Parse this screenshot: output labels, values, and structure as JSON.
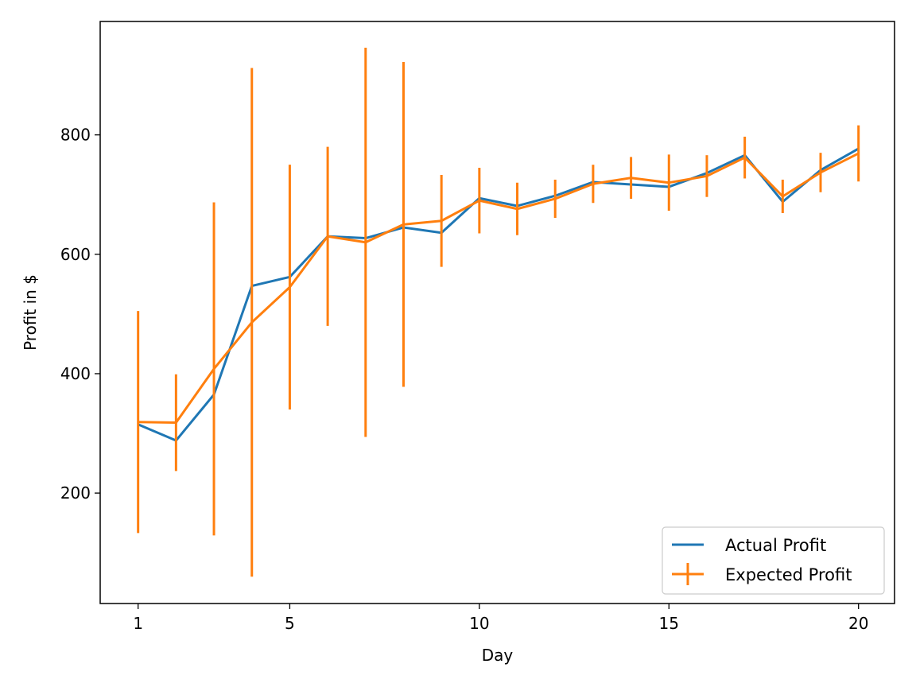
{
  "chart_data": {
    "type": "line",
    "title": "",
    "xlabel": "Day",
    "ylabel": "Profit in $",
    "x": [
      1,
      2,
      3,
      4,
      5,
      6,
      7,
      8,
      9,
      10,
      11,
      12,
      13,
      14,
      15,
      16,
      17,
      18,
      19,
      20
    ],
    "xticks": [
      1,
      5,
      10,
      15,
      20
    ],
    "yticks": [
      200,
      400,
      600,
      800
    ],
    "xlim": [
      0.0,
      20.95
    ],
    "ylim": [
      15,
      990
    ],
    "grid": false,
    "legend_position": "lower right",
    "series": [
      {
        "name": "Actual Profit",
        "color": "#1f77b4",
        "values": [
          315,
          288,
          365,
          547,
          562,
          630,
          627,
          645,
          636,
          694,
          681,
          698,
          721,
          717,
          713,
          736,
          766,
          688,
          741,
          777
        ]
      },
      {
        "name": "Expected Profit",
        "color": "#ff7f0e",
        "values": [
          319,
          318,
          408,
          486,
          545,
          630,
          620,
          650,
          656,
          690,
          676,
          693,
          718,
          728,
          720,
          731,
          762,
          697,
          737,
          769
        ],
        "error": [
          186,
          81,
          279,
          426,
          205,
          150,
          326,
          272,
          77,
          55,
          44,
          32,
          32,
          35,
          47,
          35,
          35,
          28,
          33,
          47
        ]
      }
    ]
  }
}
